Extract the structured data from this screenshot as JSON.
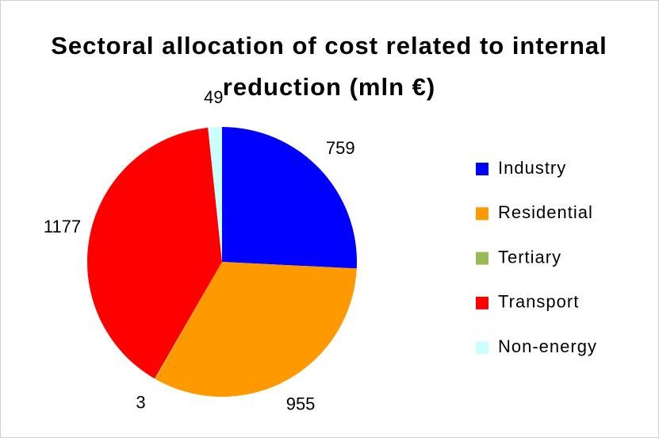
{
  "chart_data": {
    "type": "pie",
    "title": "Sectoral allocation of cost related to internal reduction (mln €)",
    "categories": [
      "Industry",
      "Residential",
      "Tertiary",
      "Transport",
      "Non-energy"
    ],
    "values": [
      759,
      955,
      3,
      1177,
      49
    ],
    "colors": [
      "#0000ff",
      "#ff9900",
      "#99bb55",
      "#ff0000",
      "#ccffff"
    ],
    "legend": "right"
  }
}
